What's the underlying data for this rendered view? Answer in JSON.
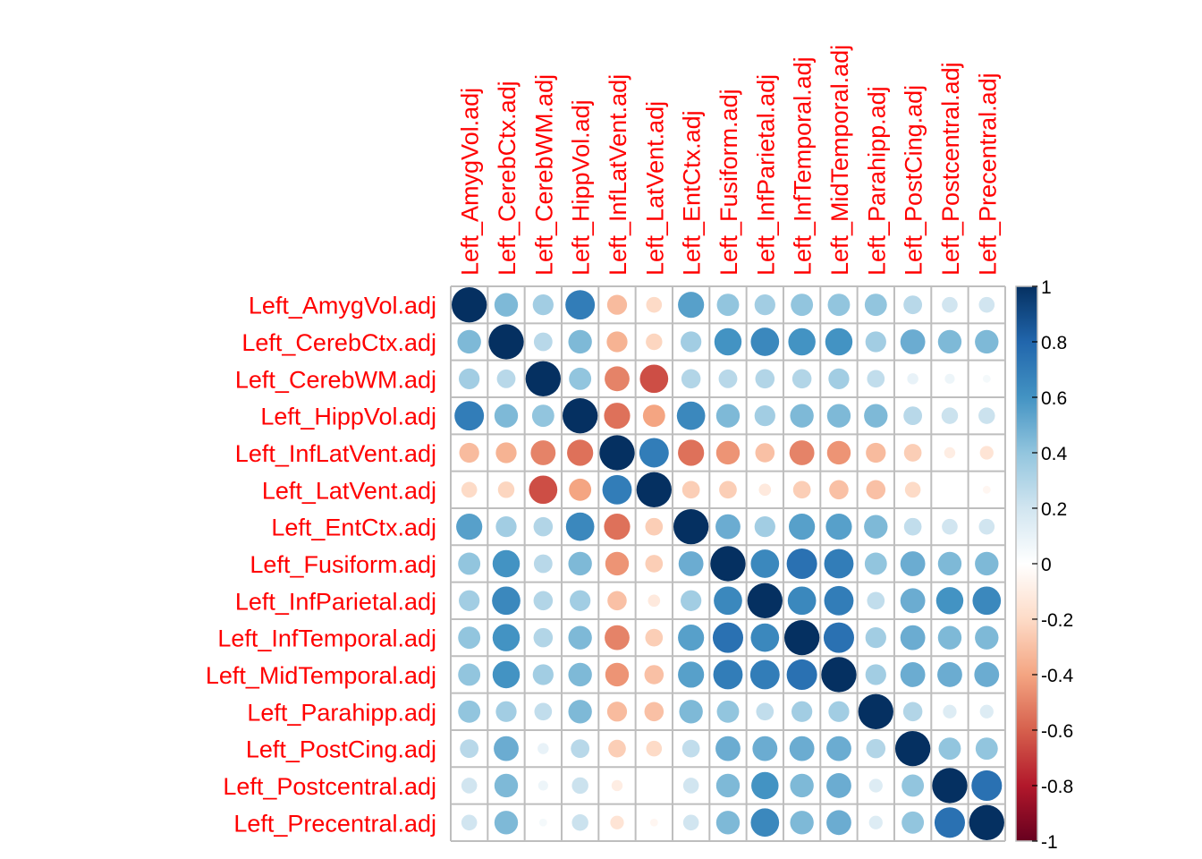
{
  "chart_data": {
    "type": "heatmap",
    "style": "correlation-circles",
    "labels": [
      "Left_AmygVol.adj",
      "Left_CerebCtx.adj",
      "Left_CerebWM.adj",
      "Left_HippVol.adj",
      "Left_InfLatVent.adj",
      "Left_LatVent.adj",
      "Left_EntCtx.adj",
      "Left_Fusiform.adj",
      "Left_InfParietal.adj",
      "Left_InfTemporal.adj",
      "Left_MidTemporal.adj",
      "Left_Parahipp.adj",
      "Left_PostCing.adj",
      "Left_Postcentral.adj",
      "Left_Precentral.adj"
    ],
    "matrix": [
      [
        1.0,
        0.45,
        0.35,
        0.7,
        -0.32,
        -0.2,
        0.55,
        0.4,
        0.35,
        0.4,
        0.4,
        0.4,
        0.28,
        0.2,
        0.2
      ],
      [
        0.45,
        1.0,
        0.28,
        0.45,
        -0.35,
        -0.22,
        0.35,
        0.6,
        0.65,
        0.6,
        0.6,
        0.35,
        0.5,
        0.45,
        0.45
      ],
      [
        0.35,
        0.28,
        1.0,
        0.4,
        -0.5,
        -0.65,
        0.3,
        0.28,
        0.3,
        0.3,
        0.35,
        0.25,
        0.1,
        0.08,
        0.05
      ],
      [
        0.7,
        0.45,
        0.4,
        1.0,
        -0.55,
        -0.4,
        0.65,
        0.45,
        0.35,
        0.45,
        0.45,
        0.45,
        0.28,
        0.22,
        0.22
      ],
      [
        -0.32,
        -0.35,
        -0.5,
        -0.55,
        1.0,
        0.7,
        -0.55,
        -0.45,
        -0.3,
        -0.5,
        -0.45,
        -0.32,
        -0.25,
        -0.1,
        -0.15
      ],
      [
        -0.2,
        -0.22,
        -0.65,
        -0.4,
        0.7,
        1.0,
        -0.25,
        -0.25,
        -0.12,
        -0.25,
        -0.3,
        -0.3,
        -0.2,
        0.0,
        -0.05
      ],
      [
        0.55,
        0.35,
        0.3,
        0.65,
        -0.55,
        -0.25,
        1.0,
        0.5,
        0.35,
        0.55,
        0.55,
        0.45,
        0.25,
        0.2,
        0.2
      ],
      [
        0.4,
        0.6,
        0.28,
        0.45,
        -0.45,
        -0.25,
        0.5,
        1.0,
        0.65,
        0.75,
        0.7,
        0.4,
        0.5,
        0.45,
        0.45
      ],
      [
        0.35,
        0.65,
        0.3,
        0.35,
        -0.3,
        -0.12,
        0.35,
        0.65,
        1.0,
        0.65,
        0.7,
        0.25,
        0.5,
        0.6,
        0.65
      ],
      [
        0.4,
        0.6,
        0.3,
        0.45,
        -0.5,
        -0.25,
        0.55,
        0.75,
        0.65,
        1.0,
        0.75,
        0.35,
        0.5,
        0.45,
        0.45
      ],
      [
        0.4,
        0.6,
        0.35,
        0.45,
        -0.45,
        -0.3,
        0.55,
        0.7,
        0.7,
        0.75,
        1.0,
        0.35,
        0.5,
        0.5,
        0.5
      ],
      [
        0.4,
        0.35,
        0.25,
        0.45,
        -0.32,
        -0.3,
        0.45,
        0.4,
        0.25,
        0.35,
        0.35,
        1.0,
        0.3,
        0.15,
        0.15
      ],
      [
        0.28,
        0.5,
        0.1,
        0.28,
        -0.25,
        -0.2,
        0.25,
        0.5,
        0.5,
        0.5,
        0.5,
        0.3,
        1.0,
        0.4,
        0.4
      ],
      [
        0.2,
        0.45,
        0.08,
        0.22,
        -0.1,
        0.0,
        0.2,
        0.45,
        0.6,
        0.45,
        0.5,
        0.15,
        0.4,
        1.0,
        0.75
      ],
      [
        0.2,
        0.45,
        0.05,
        0.22,
        -0.15,
        -0.05,
        0.2,
        0.45,
        0.65,
        0.45,
        0.5,
        0.15,
        0.4,
        0.75,
        1.0
      ]
    ],
    "colorbar": {
      "range": [
        -1,
        1
      ],
      "ticks": [
        "1",
        "0.8",
        "0.6",
        "0.4",
        "0.2",
        "0",
        "-0.2",
        "-0.4",
        "-0.6",
        "-0.8",
        "-1"
      ],
      "tick_values": [
        1,
        0.8,
        0.6,
        0.4,
        0.2,
        0,
        -0.2,
        -0.4,
        -0.6,
        -0.8,
        -1
      ],
      "colors": [
        "#67001F",
        "#B2182B",
        "#D6604D",
        "#F4A582",
        "#FDDBC7",
        "#FFFFFF",
        "#D1E5F0",
        "#92C5DE",
        "#4393C3",
        "#2166AC",
        "#053061"
      ]
    },
    "label_color": "#FF0000",
    "grid_color": "#BEBEBE"
  }
}
